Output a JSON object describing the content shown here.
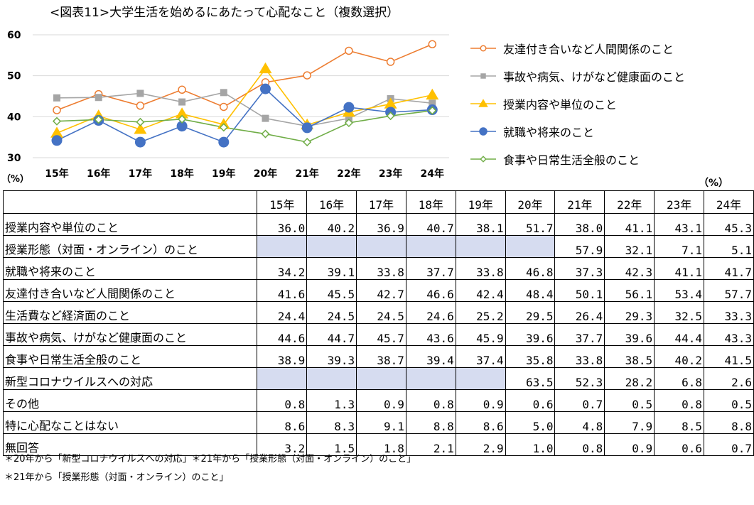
{
  "chart_data": {
    "type": "line",
    "title": "<図表11>大学生活を始めるにあたって心配なこと（複数選択）",
    "y_unit_label": "（%）",
    "ylim": [
      30,
      60
    ],
    "yticks": [
      "30",
      "40",
      "50",
      "60"
    ],
    "categories": [
      "15年",
      "16年",
      "17年",
      "18年",
      "19年",
      "20年",
      "21年",
      "22年",
      "23年",
      "24年"
    ],
    "grid": "horizontal",
    "legend_position": "right",
    "series": [
      {
        "name": "友達付き合いなど人間関係のこと",
        "color": "#ED7D31",
        "marker": "circle-open",
        "values": [
          41.6,
          45.5,
          42.7,
          46.6,
          42.4,
          48.4,
          50.1,
          56.1,
          53.4,
          57.7
        ]
      },
      {
        "name": "事故や病気、けがなど健康面のこと",
        "color": "#A5A5A5",
        "marker": "square",
        "values": [
          44.6,
          44.7,
          45.7,
          43.6,
          45.9,
          39.6,
          37.7,
          39.6,
          44.4,
          43.3
        ]
      },
      {
        "name": "授業内容や単位のこと",
        "color": "#FFC000",
        "marker": "triangle",
        "values": [
          36.0,
          40.2,
          36.9,
          40.7,
          38.1,
          51.7,
          38.0,
          41.1,
          43.1,
          45.3
        ]
      },
      {
        "name": "就職や将来のこと",
        "color": "#4472C4",
        "marker": "circle",
        "values": [
          34.2,
          39.1,
          33.8,
          37.7,
          33.8,
          46.8,
          37.3,
          42.3,
          41.1,
          41.7
        ]
      },
      {
        "name": "食事や日常生活全般のこと",
        "color": "#70AD47",
        "marker": "diamond-open",
        "values": [
          38.9,
          39.3,
          38.7,
          39.4,
          37.4,
          35.8,
          33.8,
          38.5,
          40.2,
          41.5
        ]
      }
    ]
  },
  "table": {
    "unit": "（%）",
    "years": [
      "15年",
      "16年",
      "17年",
      "18年",
      "19年",
      "20年",
      "21年",
      "22年",
      "23年",
      "24年"
    ],
    "rows": [
      {
        "label": "授業内容や単位のこと",
        "values": [
          "36.0",
          "40.2",
          "36.9",
          "40.7",
          "38.1",
          "51.7",
          "38.0",
          "41.1",
          "43.1",
          "45.3"
        ]
      },
      {
        "label": "授業形態（対面・オンライン）のこと",
        "values": [
          "",
          "",
          "",
          "",
          "",
          "",
          "57.9",
          "32.1",
          "7.1",
          "5.1"
        ],
        "na_until": 6
      },
      {
        "label": "就職や将来のこと",
        "values": [
          "34.2",
          "39.1",
          "33.8",
          "37.7",
          "33.8",
          "46.8",
          "37.3",
          "42.3",
          "41.1",
          "41.7"
        ]
      },
      {
        "label": "友達付き合いなど人間関係のこと",
        "values": [
          "41.6",
          "45.5",
          "42.7",
          "46.6",
          "42.4",
          "48.4",
          "50.1",
          "56.1",
          "53.4",
          "57.7"
        ]
      },
      {
        "label": "生活費など経済面のこと",
        "values": [
          "24.4",
          "24.5",
          "24.5",
          "24.6",
          "25.2",
          "29.5",
          "26.4",
          "29.3",
          "32.5",
          "33.3"
        ]
      },
      {
        "label": "事故や病気、けがなど健康面のこと",
        "values": [
          "44.6",
          "44.7",
          "45.7",
          "43.6",
          "45.9",
          "39.6",
          "37.7",
          "39.6",
          "44.4",
          "43.3"
        ]
      },
      {
        "label": "食事や日常生活全般のこと",
        "values": [
          "38.9",
          "39.3",
          "38.7",
          "39.4",
          "37.4",
          "35.8",
          "33.8",
          "38.5",
          "40.2",
          "41.5"
        ]
      },
      {
        "label": "新型コロナウイルスへの対応",
        "values": [
          "",
          "",
          "",
          "",
          "",
          "63.5",
          "52.3",
          "28.2",
          "6.8",
          "2.6"
        ],
        "na_until": 5
      },
      {
        "label": "その他",
        "values": [
          "0.8",
          "1.3",
          "0.9",
          "0.8",
          "0.9",
          "0.6",
          "0.7",
          "0.5",
          "0.8",
          "0.5"
        ]
      },
      {
        "label": "特に心配なことはない",
        "values": [
          "8.6",
          "8.3",
          "9.1",
          "8.8",
          "8.6",
          "5.0",
          "4.8",
          "7.9",
          "8.5",
          "8.8"
        ]
      },
      {
        "label": "無回答",
        "values": [
          "3.2",
          "1.5",
          "1.8",
          "2.1",
          "2.9",
          "1.0",
          "0.8",
          "0.9",
          "0.6",
          "0.7"
        ]
      }
    ]
  },
  "notes": [
    "＊20年から「新型コロナウイルスへの対応」＊21年から「授業形態（対面・オンライン）のこと」",
    "＊21年から「授業形態（対面・オンライン）のこと」"
  ]
}
